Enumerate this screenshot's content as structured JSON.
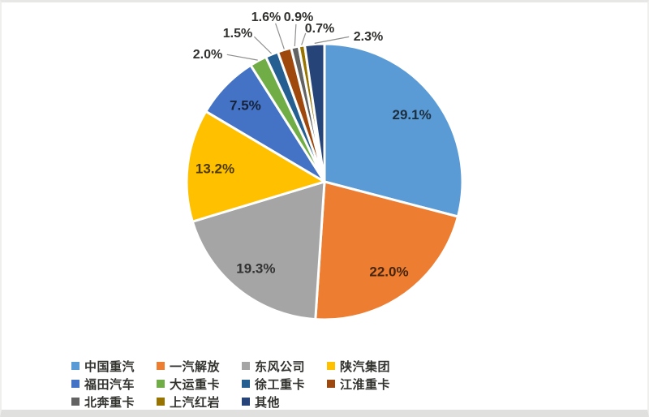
{
  "chart_data": {
    "type": "pie",
    "title": "",
    "categories": [
      "中国重汽",
      "一汽解放",
      "东风公司",
      "陕汽集团",
      "福田汽车",
      "大运重卡",
      "徐工重卡",
      "江淮重卡",
      "北奔重卡",
      "上汽红岩",
      "其他"
    ],
    "values": [
      29.1,
      22.0,
      19.3,
      13.2,
      7.5,
      2.0,
      1.5,
      1.6,
      0.9,
      0.7,
      2.3
    ],
    "labels": [
      "29.1%",
      "22.0%",
      "19.3%",
      "13.2%",
      "7.5%",
      "2.0%",
      "1.5%",
      "1.6%",
      "0.9%",
      "0.7%",
      "2.3%"
    ],
    "colors": [
      "#5B9BD5",
      "#ED7D31",
      "#A5A5A5",
      "#FFC000",
      "#4472C4",
      "#70AD47",
      "#255E91",
      "#9E480E",
      "#636363",
      "#997300",
      "#264478"
    ],
    "slice_border_color": "#FFFFFF",
    "outside_label_color": "#30302e",
    "leader_line_color": "#8f8f8d",
    "start_angle_deg": 0,
    "direction": "clockwise",
    "legend_position": "bottom",
    "legend_rows": [
      4,
      4,
      3
    ]
  }
}
